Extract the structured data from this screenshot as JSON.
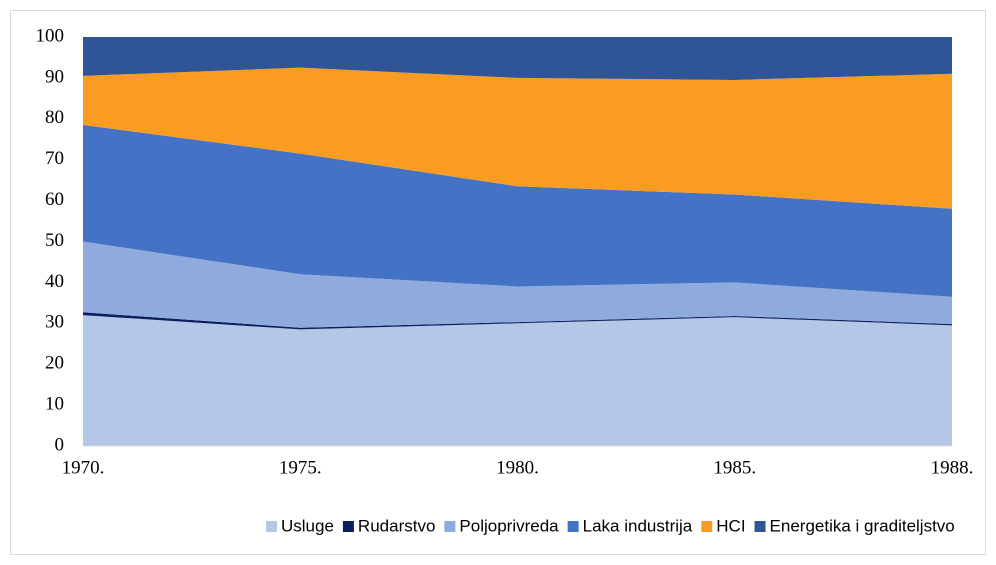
{
  "chart_data": {
    "type": "stacked_area",
    "categories": [
      "1970.",
      "1975.",
      "1980.",
      "1985.",
      "1988."
    ],
    "series": [
      {
        "name": "Usluge",
        "color": "#b4c7e7",
        "values": [
          32,
          28.5,
          30,
          31.5,
          29.5
        ]
      },
      {
        "name": "Rudarstvo",
        "color": "#0b1f5e",
        "values": [
          0.7,
          0.4,
          0.3,
          0.3,
          0.3
        ]
      },
      {
        "name": "Poljoprivreda",
        "color": "#8faadc",
        "values": [
          17.3,
          13.1,
          8.7,
          8.2,
          6.7
        ]
      },
      {
        "name": "Laka industrija",
        "color": "#4472c4",
        "values": [
          28.5,
          29.5,
          24.5,
          21.5,
          21.5
        ]
      },
      {
        "name": "HCI",
        "color": "#fa9c22",
        "values": [
          12,
          21,
          26.5,
          28,
          33
        ]
      },
      {
        "name": "Energetika i graditeljstvo",
        "color": "#2f5597",
        "values": [
          9.5,
          7.5,
          10,
          10.5,
          9
        ]
      }
    ],
    "ylim": [
      0,
      100
    ],
    "yticks": [
      0,
      10,
      20,
      30,
      40,
      50,
      60,
      70,
      80,
      90,
      100
    ],
    "legend": "bottom"
  }
}
